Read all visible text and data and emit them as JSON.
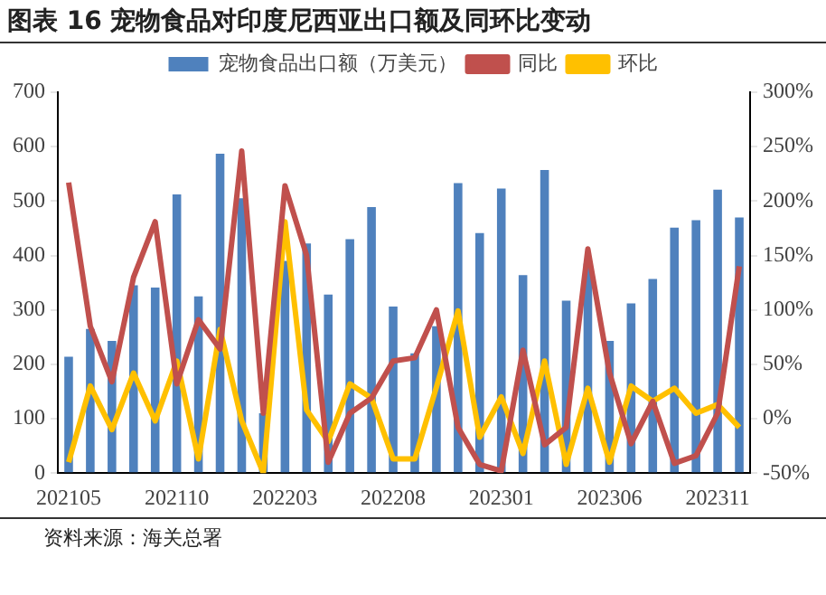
{
  "chart_data": {
    "type": "bar",
    "title": "图表 16 宠物食品对印度尼西亚出口额及同环比变动",
    "categories": [
      "202105",
      null,
      null,
      null,
      null,
      "202110",
      null,
      null,
      null,
      null,
      "202203",
      null,
      null,
      null,
      null,
      "202208",
      null,
      null,
      null,
      null,
      "202301",
      null,
      null,
      null,
      null,
      "202306",
      null,
      null,
      null,
      null,
      "202311",
      null
    ],
    "series": [
      {
        "name": "宠物食品出口额（万美元）",
        "color": "#4f81bd",
        "values": [
          214,
          265,
          243,
          345,
          341,
          512,
          325,
          587,
          505,
          110,
          390,
          422,
          328,
          430,
          489,
          306,
          220,
          270,
          533,
          441,
          523,
          364,
          557,
          317,
          385,
          243,
          312,
          357,
          451,
          465,
          521,
          470
        ]
      },
      {
        "name": "同比",
        "type": "line",
        "axis": "y2",
        "color": "#c0504d",
        "values": [
          217,
          85,
          34,
          130,
          181,
          32,
          91,
          64,
          246,
          5,
          214,
          150,
          -40,
          5,
          19,
          53,
          56,
          100,
          -8,
          -42,
          -48,
          63,
          -24,
          -8,
          156,
          42,
          -23,
          16,
          -41,
          -34,
          5,
          140
        ]
      },
      {
        "name": "环比",
        "type": "line",
        "axis": "y2",
        "color": "#ffc000",
        "values": [
          -40,
          30,
          -10,
          42,
          -2,
          53,
          -37,
          82,
          -2,
          -50,
          181,
          8,
          -21,
          32,
          19,
          -37,
          -37,
          29,
          99,
          -17,
          20,
          -32,
          53,
          -42,
          28,
          -40,
          30,
          16,
          28,
          5,
          13,
          -8
        ]
      }
    ],
    "ylim": [
      0,
      700
    ],
    "yticks": [
      0,
      100,
      200,
      300,
      400,
      500,
      600,
      700
    ],
    "y2lim": [
      -50,
      300
    ],
    "y2ticks": [
      {
        "value": -50,
        "label": "-50%"
      },
      {
        "value": 0,
        "label": "0%"
      },
      {
        "value": 50,
        "label": "50%"
      },
      {
        "value": 100,
        "label": "100%"
      },
      {
        "value": 150,
        "label": "150%"
      },
      {
        "value": 200,
        "label": "200%"
      },
      {
        "value": 250,
        "label": "250%"
      },
      {
        "value": 300,
        "label": "300%"
      }
    ],
    "legend": "top",
    "grid": false,
    "marker": "none",
    "line_style": "solid",
    "annotations": [
      "资料来源：海关总署"
    ]
  }
}
